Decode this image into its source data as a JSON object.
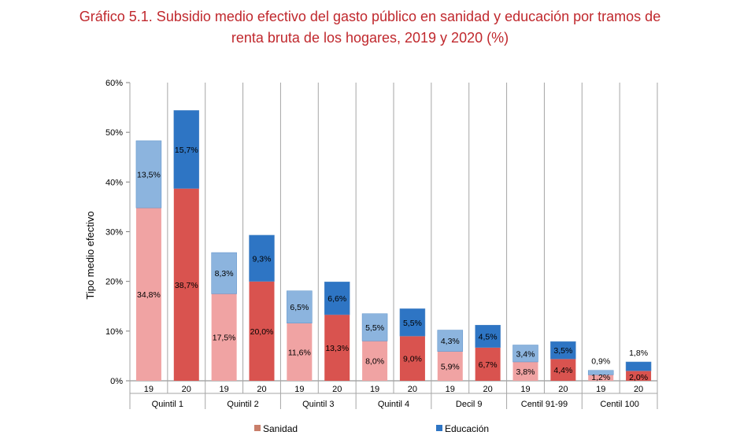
{
  "title_lines": [
    "Gráfico 5.1. Subsidio medio efectivo del gasto público en sanidad y educación por tramos de",
    "renta bruta de los hogares, 2019 y 2020 (%)"
  ],
  "colors": {
    "sanidad_2019": "#f0a3a3",
    "sanidad_2020": "#d9534f",
    "educacion_2019": "#8cb4de",
    "educacion_2020": "#2e75c4",
    "legend_sanidad": "#c97f6a",
    "legend_educacion": "#2e75c4"
  },
  "chart_data": {
    "type": "bar",
    "stacked": true,
    "title": "Gráfico 5.1. Subsidio medio efectivo del gasto público en sanidad y educación por tramos de renta bruta de los hogares, 2019 y 2020 (%)",
    "ylabel": "Tipo medio efectivo",
    "xlabel": "",
    "ylim": [
      0,
      60
    ],
    "yticks": [
      "0%",
      "10%",
      "20%",
      "30%",
      "40%",
      "50%",
      "60%"
    ],
    "grid": false,
    "legend_position": "bottom",
    "groups": [
      "Quintil 1",
      "Quintil 2",
      "Quintil 3",
      "Quintil 4",
      "Decil 9",
      "Centil 91-99",
      "Centil 100"
    ],
    "categories": [
      "19",
      "20",
      "19",
      "20",
      "19",
      "20",
      "19",
      "20",
      "19",
      "20",
      "19",
      "20",
      "19",
      "20"
    ],
    "series": [
      {
        "name": "Sanidad",
        "values": [
          34.8,
          38.7,
          17.5,
          20.0,
          11.6,
          13.3,
          8.0,
          9.0,
          5.9,
          6.7,
          3.8,
          4.4,
          1.2,
          2.0
        ],
        "labels": [
          "34,8%",
          "38,7%",
          "17,5%",
          "20,0%",
          "11,6%",
          "13,3%",
          "8,0%",
          "9,0%",
          "5,9%",
          "6,7%",
          "3,8%",
          "4,4%",
          "1,2%",
          "2,0%"
        ]
      },
      {
        "name": "Educación",
        "values": [
          13.5,
          15.7,
          8.3,
          9.3,
          6.5,
          6.6,
          5.5,
          5.5,
          4.3,
          4.5,
          3.4,
          3.5,
          0.9,
          1.8
        ],
        "labels": [
          "13,5%",
          "15,7%",
          "8,3%",
          "9,3%",
          "6,5%",
          "6,6%",
          "5,5%",
          "5,5%",
          "4,3%",
          "4,5%",
          "3,4%",
          "3,5%",
          "0,9%",
          "1,8%"
        ]
      }
    ]
  }
}
